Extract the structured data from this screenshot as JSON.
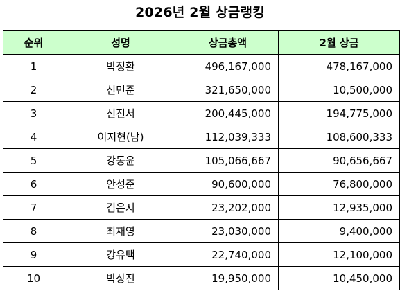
{
  "title": "2026년 2월 상금랭킹",
  "columns": {
    "rank": "순위",
    "name": "성명",
    "total": "상금총액",
    "month": "2월 상금"
  },
  "rows": [
    {
      "rank": "1",
      "name": "박정환",
      "total": "496,167,000",
      "month": "478,167,000"
    },
    {
      "rank": "2",
      "name": "신민준",
      "total": "321,650,000",
      "month": "10,500,000"
    },
    {
      "rank": "3",
      "name": "신진서",
      "total": "200,445,000",
      "month": "194,775,000"
    },
    {
      "rank": "4",
      "name": "이지현(남)",
      "total": "112,039,333",
      "month": "108,600,333"
    },
    {
      "rank": "5",
      "name": "강동윤",
      "total": "105,066,667",
      "month": "90,656,667"
    },
    {
      "rank": "6",
      "name": "안성준",
      "total": "90,600,000",
      "month": "76,800,000"
    },
    {
      "rank": "7",
      "name": "김은지",
      "total": "23,202,000",
      "month": "12,935,000"
    },
    {
      "rank": "8",
      "name": "최재영",
      "total": "23,030,000",
      "month": "9,400,000"
    },
    {
      "rank": "9",
      "name": "강유택",
      "total": "22,740,000",
      "month": "12,100,000"
    },
    {
      "rank": "10",
      "name": "박상진",
      "total": "19,950,000",
      "month": "10,450,000"
    }
  ],
  "colors": {
    "header_bg": "#ccffcc",
    "border": "#000000"
  }
}
